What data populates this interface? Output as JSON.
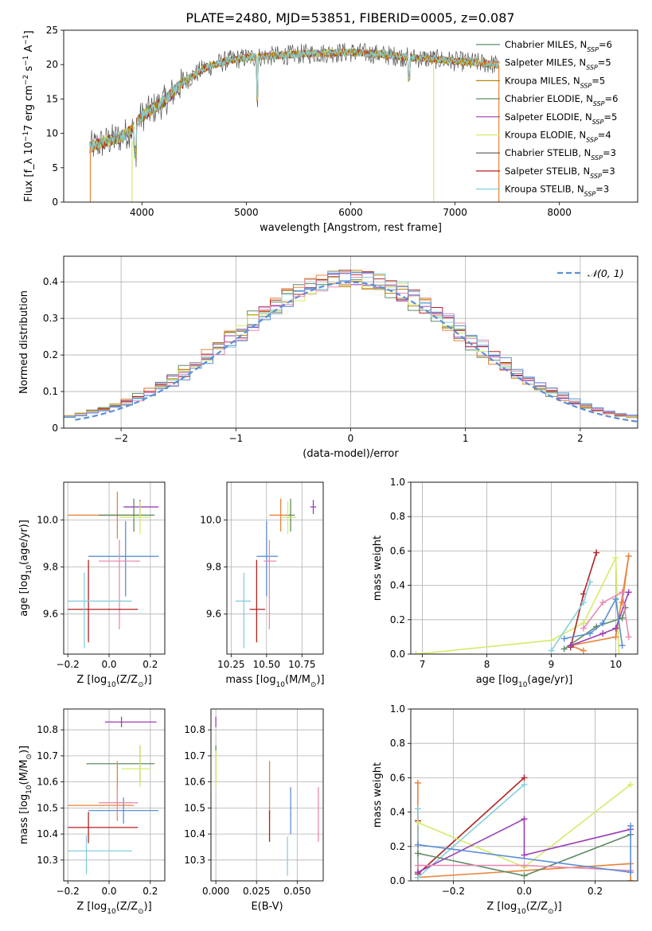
{
  "title": "PLATE=2480, MJD=53851, FIBERID=0005, z=0.087",
  "chart_data": [
    {
      "id": "spectrum",
      "type": "line",
      "xlabel": "wavelength [Angstrom, rest frame]",
      "ylabel": "Flux [f_λ 10^-17 erg cm^-2 s^-1 A^-1]",
      "xlim": [
        3250,
        8750
      ],
      "ylim": [
        0,
        25
      ],
      "xticks": [
        4000,
        5000,
        6000,
        7000,
        8000
      ],
      "yticks": [
        0,
        5,
        10,
        15,
        20,
        25
      ],
      "grid": false,
      "legend_position": "top-right",
      "series": [
        {
          "name": "Chabrier MILES, N_SSP=6",
          "color": "#5e8c65"
        },
        {
          "name": "Salpeter MILES, N_SSP=5",
          "color": "#e8833a"
        },
        {
          "name": "Kroupa MILES, N_SSP=5",
          "color": "#b3860b"
        },
        {
          "name": "Chabrier ELODIE, N_SSP=6",
          "color": "#5e8c65"
        },
        {
          "name": "Salpeter ELODIE, N_SSP=5",
          "color": "#9b3eb5"
        },
        {
          "name": "Kroupa ELODIE, N_SSP=4",
          "color": "#d4eb6a"
        },
        {
          "name": "Chabrier STELIB, N_SSP=3",
          "color": "#555555"
        },
        {
          "name": "Salpeter STELIB, N_SSP=3",
          "color": "#b22222"
        },
        {
          "name": "Kroupa STELIB, N_SSP=3",
          "color": "#87cedc"
        }
      ],
      "spectrum_envelope": {
        "x": [
          3500,
          3600,
          3700,
          3800,
          3900,
          4000,
          4100,
          4200,
          4300,
          4400,
          4500,
          4600,
          4700,
          4800,
          4900,
          5000,
          5200,
          5400,
          5600,
          5800,
          6000,
          6200,
          6400,
          6600,
          6800,
          7000,
          7200,
          7400
        ],
        "y": [
          8.0,
          8.5,
          9.0,
          9.5,
          10.5,
          12.5,
          13.5,
          14.5,
          16.0,
          17.5,
          18.5,
          19.5,
          20.0,
          20.5,
          20.8,
          21.0,
          21.2,
          21.4,
          21.6,
          21.7,
          21.8,
          21.6,
          21.3,
          21.0,
          20.8,
          20.5,
          20.3,
          20.0
        ]
      }
    },
    {
      "id": "residuals",
      "type": "area",
      "xlabel": "(data-model)/error",
      "ylabel": "Normed distribution",
      "xlim": [
        -2.5,
        2.5
      ],
      "ylim": [
        0,
        0.47
      ],
      "xticks": [
        -2,
        -1,
        0,
        1,
        2
      ],
      "xtick_labels": [
        "−2",
        "−1",
        "0",
        "1",
        "2"
      ],
      "yticks": [
        0.0,
        0.1,
        0.2,
        0.3,
        0.4
      ],
      "grid": true,
      "legend": [
        {
          "name": "𝒩(0, 1)",
          "color": "#5b8fd6",
          "style": "dashed"
        }
      ],
      "legend_position": "top-right",
      "hist_colors": [
        "#5e8c65",
        "#e8833a",
        "#b3860b",
        "#9b3eb5",
        "#d4eb6a",
        "#b22222",
        "#87cedc",
        "#e88bb3",
        "#5b8fd6"
      ]
    },
    {
      "id": "age_vs_Z",
      "type": "scatter",
      "xlabel": "Z [log10(Z/Z⊙)]",
      "ylabel": "age  [log10(age/yr)]",
      "xlim": [
        -0.22,
        0.27
      ],
      "ylim": [
        9.43,
        10.16
      ],
      "xticks": [
        -0.2,
        0.0,
        0.2
      ],
      "xtick_labels": [
        "−0.2",
        "0.0",
        "0.2"
      ],
      "yticks": [
        9.6,
        9.8,
        10.0
      ],
      "ytick_labels": [
        "9.6",
        "9.8",
        "10.0"
      ],
      "grid": true,
      "points": [
        {
          "x": 0.15,
          "y": 10.055,
          "xerr": [
            0.08,
            0.09
          ],
          "yerr": [
            0.03,
            0.03
          ],
          "color": "#9b3eb5"
        },
        {
          "x": 0.04,
          "y": 10.02,
          "xerr": [
            0.24,
            0.12
          ],
          "yerr": [
            0.1,
            0.1
          ],
          "color": "#e8833a"
        },
        {
          "x": 0.12,
          "y": 10.02,
          "xerr": [
            0.17,
            0.1
          ],
          "yerr": [
            0.07,
            0.07
          ],
          "color": "#5e8c65"
        },
        {
          "x": 0.15,
          "y": 10.01,
          "xerr": [
            0.1,
            0.05
          ],
          "yerr": [
            0.07,
            0.07
          ],
          "color": "#d4eb6a"
        },
        {
          "x": 0.08,
          "y": 9.845,
          "xerr": [
            0.18,
            0.16
          ],
          "yerr": [
            0.17,
            0.15
          ],
          "color": "#5b8fd6"
        },
        {
          "x": 0.05,
          "y": 9.825,
          "xerr": [
            0.1,
            0.1
          ],
          "yerr": [
            0.29,
            0.09
          ],
          "color": "#e88bb3"
        },
        {
          "x": -0.1,
          "y": 9.62,
          "xerr": [
            0.1,
            0.24
          ],
          "yerr": [
            0.14,
            0.21
          ],
          "color": "#b22222"
        },
        {
          "x": -0.12,
          "y": 9.655,
          "xerr": [
            0.08,
            0.23
          ],
          "yerr": [
            0.2,
            0.12
          ],
          "color": "#87cedc"
        }
      ]
    },
    {
      "id": "age_vs_mass",
      "type": "scatter",
      "xlabel": "mass [log10(M/M⊙)]",
      "ylabel": "",
      "xlim": [
        10.22,
        10.9
      ],
      "ylim": [
        9.43,
        10.16
      ],
      "xticks": [
        10.25,
        10.5,
        10.75
      ],
      "xtick_labels": [
        "10.25",
        "10.50",
        "10.75"
      ],
      "yticks": [
        9.6,
        9.8,
        10.0
      ],
      "ytick_labels": [
        "9.6",
        "9.8",
        "10.0"
      ],
      "grid": true,
      "points": [
        {
          "x": 10.83,
          "y": 10.055,
          "xerr": [
            0.02,
            0.02
          ],
          "yerr": [
            0.03,
            0.03
          ],
          "color": "#9b3eb5"
        },
        {
          "x": 10.6,
          "y": 10.02,
          "xerr": [
            0.08,
            0.07
          ],
          "yerr": [
            0.07,
            0.07
          ],
          "color": "#e8833a"
        },
        {
          "x": 10.67,
          "y": 10.02,
          "xerr": [
            0.03,
            0.03
          ],
          "yerr": [
            0.07,
            0.07
          ],
          "color": "#5e8c65"
        },
        {
          "x": 10.65,
          "y": 10.01,
          "xerr": [
            0.04,
            0.06
          ],
          "yerr": [
            0.07,
            0.07
          ],
          "color": "#d4eb6a"
        },
        {
          "x": 10.5,
          "y": 9.845,
          "xerr": [
            0.07,
            0.08
          ],
          "yerr": [
            0.17,
            0.15
          ],
          "color": "#5b8fd6"
        },
        {
          "x": 10.52,
          "y": 9.825,
          "xerr": [
            0.04,
            0.05
          ],
          "yerr": [
            0.29,
            0.09
          ],
          "color": "#e88bb3"
        },
        {
          "x": 10.43,
          "y": 9.62,
          "xerr": [
            0.05,
            0.06
          ],
          "yerr": [
            0.14,
            0.21
          ],
          "color": "#b22222"
        },
        {
          "x": 10.34,
          "y": 9.655,
          "xerr": [
            0.06,
            0.05
          ],
          "yerr": [
            0.2,
            0.12
          ],
          "color": "#87cedc"
        }
      ]
    },
    {
      "id": "weight_vs_age",
      "type": "line",
      "xlabel": "age  [log10(age/yr)]",
      "ylabel": "mass weight",
      "xlim": [
        6.82,
        10.34
      ],
      "ylim": [
        0,
        1
      ],
      "xticks": [
        7,
        8,
        9,
        10
      ],
      "xtick_labels": [
        "7",
        "8",
        "9",
        "10"
      ],
      "yticks": [
        0,
        0.2,
        0.4,
        0.6,
        0.8,
        1.0
      ],
      "ytick_labels": [
        "0.0",
        "0.2",
        "0.4",
        "0.6",
        "0.8",
        "1.0"
      ],
      "grid": true,
      "series": [
        {
          "color": "#d4eb6a",
          "x": [
            6.9,
            9.0,
            9.5,
            10.0,
            10.05
          ],
          "y": [
            0.0,
            0.08,
            0.18,
            0.56,
            0.0
          ]
        },
        {
          "color": "#e8833a",
          "x": [
            9.5,
            9.3,
            10.0,
            10.2,
            10.1
          ],
          "y": [
            0.02,
            0.05,
            0.1,
            0.57,
            0.3
          ]
        },
        {
          "color": "#b22222",
          "x": [
            9.3,
            9.5,
            9.7
          ],
          "y": [
            0.04,
            0.35,
            0.59
          ]
        },
        {
          "color": "#87cedc",
          "x": [
            9.0,
            9.5,
            9.6
          ],
          "y": [
            0.02,
            0.3,
            0.42
          ]
        },
        {
          "color": "#5e8c65",
          "x": [
            9.2,
            9.7,
            10.1,
            10.15
          ],
          "y": [
            0.03,
            0.16,
            0.21,
            0.27
          ]
        },
        {
          "color": "#9b3eb5",
          "x": [
            9.3,
            9.8,
            10.0,
            10.2
          ],
          "y": [
            0.05,
            0.12,
            0.15,
            0.36
          ]
        },
        {
          "color": "#e88bb3",
          "x": [
            9.5,
            9.8,
            10.1,
            10.2
          ],
          "y": [
            0.15,
            0.3,
            0.36,
            0.1
          ]
        },
        {
          "color": "#5b8fd6",
          "x": [
            9.2,
            9.6,
            9.8,
            10.0,
            10.1
          ],
          "y": [
            0.09,
            0.12,
            0.18,
            0.32,
            0.05
          ]
        }
      ]
    },
    {
      "id": "mass_vs_Z",
      "type": "scatter",
      "xlabel": "Z [log10(Z/Z⊙)]",
      "ylabel": "mass [log10(M/M⊙)]",
      "xlim": [
        -0.22,
        0.27
      ],
      "ylim": [
        10.22,
        10.88
      ],
      "xticks": [
        -0.2,
        0.0,
        0.2
      ],
      "xtick_labels": [
        "−0.2",
        "0.0",
        "0.2"
      ],
      "yticks": [
        10.3,
        10.4,
        10.5,
        10.6,
        10.7,
        10.8
      ],
      "ytick_labels": [
        "10.3",
        "10.4",
        "10.5",
        "10.6",
        "10.7",
        "10.8"
      ],
      "grid": true,
      "points": [
        {
          "x": 0.06,
          "y": 10.83,
          "xerr": [
            0.08,
            0.17
          ],
          "yerr": [
            0.02,
            0.02
          ],
          "color": "#9b3eb5"
        },
        {
          "x": 0.15,
          "y": 10.67,
          "xerr": [
            0.26,
            0.07
          ],
          "yerr": [
            0.07,
            0.07
          ],
          "color": "#5e8c65"
        },
        {
          "x": 0.15,
          "y": 10.65,
          "xerr": [
            0.09,
            0.05
          ],
          "yerr": [
            0.07,
            0.09
          ],
          "color": "#d4eb6a"
        },
        {
          "x": 0.04,
          "y": 10.51,
          "xerr": [
            0.24,
            0.08
          ],
          "yerr": [
            0.06,
            0.17
          ],
          "color": "#e8833a"
        },
        {
          "x": 0.07,
          "y": 10.49,
          "xerr": [
            0.17,
            0.17
          ],
          "yerr": [
            0.05,
            0.05
          ],
          "color": "#5b8fd6"
        },
        {
          "x": 0.04,
          "y": 10.52,
          "xerr": [
            0.09,
            0.1
          ],
          "yerr": [
            0.06,
            0.06
          ],
          "color": "#e88bb3"
        },
        {
          "x": -0.1,
          "y": 10.425,
          "xerr": [
            0.1,
            0.24
          ],
          "yerr": [
            0.06,
            0.06
          ],
          "color": "#b22222"
        },
        {
          "x": -0.11,
          "y": 10.335,
          "xerr": [
            0.09,
            0.22
          ],
          "yerr": [
            0.09,
            0.06
          ],
          "color": "#87cedc"
        }
      ]
    },
    {
      "id": "mass_vs_ebv",
      "type": "scatter",
      "xlabel": "E(B-V)",
      "ylabel": "",
      "xlim": [
        -0.003,
        0.066
      ],
      "ylim": [
        10.22,
        10.88
      ],
      "xticks": [
        0.0,
        0.025,
        0.05
      ],
      "xtick_labels": [
        "0.000",
        "0.025",
        "0.050"
      ],
      "yticks": [
        10.3,
        10.4,
        10.5,
        10.6,
        10.7,
        10.8
      ],
      "ytick_labels": [
        "10.3",
        "10.4",
        "10.5",
        "10.6",
        "10.7",
        "10.8"
      ],
      "grid": true,
      "points": [
        {
          "x": 0.0,
          "y": 10.83,
          "xerr": [
            0,
            0
          ],
          "yerr": [
            0.02,
            0.02
          ],
          "color": "#9b3eb5"
        },
        {
          "x": 0.0,
          "y": 10.67,
          "xerr": [
            0,
            0
          ],
          "yerr": [
            0.07,
            0.07
          ],
          "color": "#5e8c65"
        },
        {
          "x": 0.0,
          "y": 10.65,
          "xerr": [
            0,
            0
          ],
          "yerr": [
            0.07,
            0.07
          ],
          "color": "#d4eb6a"
        },
        {
          "x": 0.033,
          "y": 10.52,
          "xerr": [
            0,
            0
          ],
          "yerr": [
            0.06,
            0.16
          ],
          "color": "#e8833a"
        },
        {
          "x": 0.033,
          "y": 10.43,
          "xerr": [
            0,
            0
          ],
          "yerr": [
            0.06,
            0.06
          ],
          "color": "#b22222"
        },
        {
          "x": 0.046,
          "y": 10.49,
          "xerr": [
            0,
            0
          ],
          "yerr": [
            0.09,
            0.09
          ],
          "color": "#5b8fd6"
        },
        {
          "x": 0.044,
          "y": 10.33,
          "xerr": [
            0,
            0
          ],
          "yerr": [
            0.09,
            0.06
          ],
          "color": "#87cedc"
        },
        {
          "x": 0.063,
          "y": 10.48,
          "xerr": [
            0,
            0
          ],
          "yerr": [
            0.11,
            0.1
          ],
          "color": "#e88bb3"
        }
      ]
    },
    {
      "id": "weight_vs_Z",
      "type": "line",
      "xlabel": "Z [log10(Z/Z⊙)]",
      "ylabel": "mass weight",
      "xlim": [
        -0.32,
        0.32
      ],
      "ylim": [
        0,
        1
      ],
      "xticks": [
        -0.2,
        0.0,
        0.2
      ],
      "xtick_labels": [
        "−0.2",
        "0.0",
        "0.2"
      ],
      "yticks": [
        0,
        0.2,
        0.4,
        0.6,
        0.8,
        1.0
      ],
      "ytick_labels": [
        "0.0",
        "0.2",
        "0.4",
        "0.6",
        "0.8",
        "1.0"
      ],
      "grid": true,
      "series": [
        {
          "color": "#e8833a",
          "x": [
            -0.3,
            -0.3,
            0.3,
            0.3
          ],
          "y": [
            0.57,
            0.02,
            0.1,
            0.0
          ]
        },
        {
          "color": "#b22222",
          "x": [
            -0.3,
            -0.3,
            0.0
          ],
          "y": [
            0.35,
            0.04,
            0.6
          ]
        },
        {
          "color": "#87cedc",
          "x": [
            -0.3,
            -0.3,
            0.0
          ],
          "y": [
            0.42,
            0.02,
            0.56
          ]
        },
        {
          "color": "#d4eb6a",
          "x": [
            -0.3,
            0.0,
            0.3
          ],
          "y": [
            0.34,
            0.08,
            0.56
          ]
        },
        {
          "color": "#5e8c65",
          "x": [
            -0.3,
            0.0,
            0.3
          ],
          "y": [
            0.16,
            0.03,
            0.27
          ]
        },
        {
          "color": "#9b3eb5",
          "x": [
            -0.3,
            0.0,
            0.0,
            0.3
          ],
          "y": [
            0.05,
            0.36,
            0.15,
            0.3
          ]
        },
        {
          "color": "#e88bb3",
          "x": [
            -0.3,
            0.0,
            0.3
          ],
          "y": [
            0.09,
            0.09,
            0.06
          ]
        },
        {
          "color": "#5b8fd6",
          "x": [
            -0.3,
            0.3,
            0.3
          ],
          "y": [
            0.21,
            0.05,
            0.32
          ]
        }
      ]
    }
  ]
}
